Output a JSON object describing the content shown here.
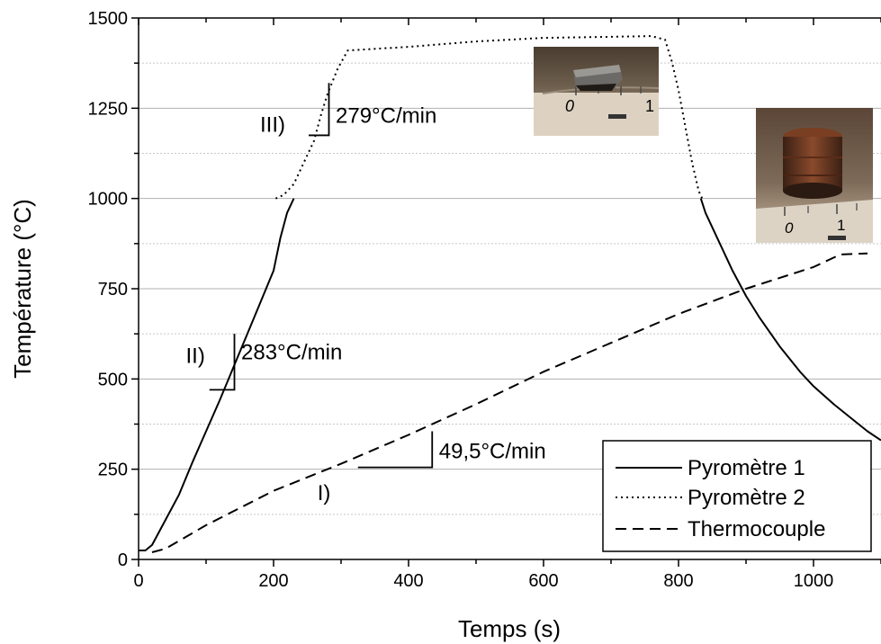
{
  "chart_data": {
    "type": "line",
    "xlabel": "Temps (s)",
    "ylabel": "Température (°C)",
    "xlim": [
      0,
      1100
    ],
    "ylim": [
      0,
      1500
    ],
    "x_ticks": [
      0,
      200,
      400,
      600,
      800,
      1000
    ],
    "y_ticks": [
      0,
      250,
      500,
      750,
      1000,
      1250,
      1500
    ],
    "x_minor_step": 100,
    "y_minor_step": 125,
    "grid": "horizontal",
    "legend_position": "bottom-right",
    "series": [
      {
        "name": "Pyromètre 1",
        "style": "solid",
        "segments": [
          [
            [
              0,
              25
            ],
            [
              10,
              25
            ],
            [
              20,
              40
            ],
            [
              40,
              110
            ],
            [
              60,
              180
            ],
            [
              80,
              270
            ],
            [
              100,
              355
            ],
            [
              120,
              440
            ],
            [
              140,
              530
            ],
            [
              160,
              620
            ],
            [
              180,
              710
            ],
            [
              200,
              800
            ],
            [
              210,
              890
            ],
            [
              220,
              960
            ],
            [
              230,
              1000
            ]
          ],
          [
            [
              833,
              1000
            ],
            [
              840,
              960
            ],
            [
              860,
              880
            ],
            [
              880,
              800
            ],
            [
              900,
              730
            ],
            [
              920,
              670
            ],
            [
              950,
              590
            ],
            [
              980,
              520
            ],
            [
              1000,
              480
            ],
            [
              1030,
              430
            ],
            [
              1060,
              385
            ],
            [
              1080,
              355
            ],
            [
              1100,
              330
            ]
          ]
        ]
      },
      {
        "name": "Pyromètre 2",
        "style": "dotted",
        "segments": [
          [
            [
              203,
              1000
            ],
            [
              215,
              1010
            ],
            [
              230,
              1040
            ],
            [
              250,
              1120
            ],
            [
              260,
              1160
            ],
            [
              270,
              1230
            ],
            [
              280,
              1290
            ],
            [
              295,
              1360
            ],
            [
              310,
              1410
            ],
            [
              400,
              1420
            ],
            [
              500,
              1435
            ],
            [
              600,
              1445
            ],
            [
              700,
              1448
            ],
            [
              760,
              1450
            ],
            [
              780,
              1440
            ],
            [
              790,
              1380
            ],
            [
              800,
              1300
            ],
            [
              810,
              1200
            ],
            [
              820,
              1100
            ],
            [
              830,
              1020
            ],
            [
              835,
              1000
            ]
          ]
        ]
      },
      {
        "name": "Thermocouple",
        "style": "dashed",
        "segments": [
          [
            [
              20,
              20
            ],
            [
              40,
              30
            ],
            [
              100,
              95
            ],
            [
              200,
              190
            ],
            [
              300,
              265
            ],
            [
              400,
              345
            ],
            [
              500,
              430
            ],
            [
              600,
              520
            ],
            [
              700,
              600
            ],
            [
              800,
              680
            ],
            [
              900,
              750
            ],
            [
              1000,
              810
            ],
            [
              1040,
              845
            ],
            [
              1080,
              848
            ]
          ]
        ]
      }
    ],
    "slope_annotations": [
      {
        "phase": "I)",
        "text": "49,5°C/min",
        "triangle": [
          [
            325,
            255
          ],
          [
            435,
            255
          ],
          [
            435,
            355
          ]
        ],
        "phase_at": [
          265,
          165
        ],
        "text_at": [
          445,
          280
        ]
      },
      {
        "phase": "II)",
        "text": "283°C/min",
        "triangle": [
          [
            105,
            470
          ],
          [
            142,
            470
          ],
          [
            142,
            625
          ]
        ],
        "phase_at": [
          70,
          545
        ],
        "text_at": [
          152,
          555
        ]
      },
      {
        "phase": "III)",
        "text": "279°C/min",
        "triangle": [
          [
            252,
            1175
          ],
          [
            282,
            1175
          ],
          [
            282,
            1320
          ]
        ],
        "phase_at": [
          180,
          1185
        ],
        "text_at": [
          292,
          1210
        ]
      }
    ],
    "insets": [
      {
        "name": "sample-photo-before",
        "scale_labels": [
          "0",
          "1"
        ]
      },
      {
        "name": "sample-photo-after",
        "scale_labels": [
          "0",
          "1"
        ]
      }
    ]
  }
}
